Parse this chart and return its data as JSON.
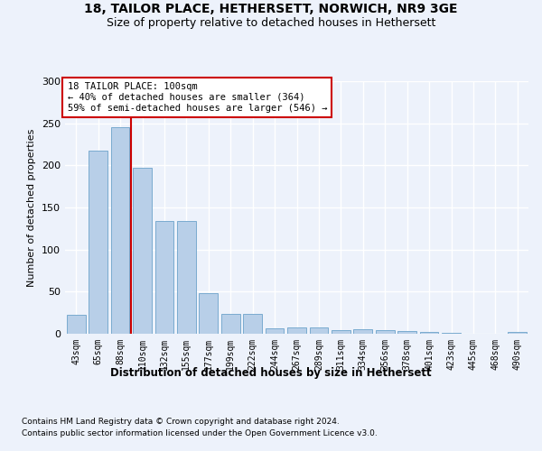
{
  "title1": "18, TAILOR PLACE, HETHERSETT, NORWICH, NR9 3GE",
  "title2": "Size of property relative to detached houses in Hethersett",
  "xlabel": "Distribution of detached houses by size in Hethersett",
  "ylabel": "Number of detached properties",
  "categories": [
    "43sqm",
    "65sqm",
    "88sqm",
    "110sqm",
    "132sqm",
    "155sqm",
    "177sqm",
    "199sqm",
    "222sqm",
    "244sqm",
    "267sqm",
    "289sqm",
    "311sqm",
    "334sqm",
    "356sqm",
    "378sqm",
    "401sqm",
    "423sqm",
    "445sqm",
    "468sqm",
    "490sqm"
  ],
  "values": [
    23,
    218,
    245,
    197,
    134,
    134,
    48,
    24,
    24,
    6,
    7,
    7,
    4,
    5,
    4,
    3,
    2,
    1,
    0,
    0,
    2
  ],
  "bar_color": "#b8cfe8",
  "bar_edge_color": "#7aabcf",
  "vline_position": 2.5,
  "vline_color": "#cc0000",
  "annotation_text": "18 TAILOR PLACE: 100sqm\n← 40% of detached houses are smaller (364)\n59% of semi-detached houses are larger (546) →",
  "footnote1": "Contains HM Land Registry data © Crown copyright and database right 2024.",
  "footnote2": "Contains public sector information licensed under the Open Government Licence v3.0.",
  "ylim": [
    0,
    300
  ],
  "background_color": "#edf2fb",
  "grid_color": "#ffffff",
  "title1_fontsize": 10,
  "title2_fontsize": 9
}
